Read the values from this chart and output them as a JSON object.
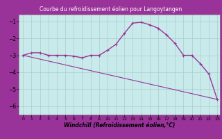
{
  "title": "Courbe du refroidissement éolien pour Langoytangen",
  "xlabel": "Windchill (Refroidissement éolien,°C)",
  "bg_color": "#c8eaea",
  "line_color": "#993399",
  "title_bg": "#993399",
  "title_color": "#ffffff",
  "xlim": [
    -0.5,
    23.3
  ],
  "ylim": [
    -6.5,
    -0.6
  ],
  "yticks": [
    -6,
    -5,
    -4,
    -3,
    -2,
    -1
  ],
  "xticks": [
    0,
    1,
    2,
    3,
    4,
    5,
    6,
    7,
    8,
    9,
    10,
    11,
    12,
    13,
    14,
    15,
    16,
    17,
    18,
    19,
    20,
    21,
    22,
    23
  ],
  "curve_x": [
    0,
    1,
    2,
    3,
    4,
    5,
    6,
    7,
    8,
    9,
    10,
    11,
    12,
    13,
    14,
    15,
    16,
    17,
    18,
    19,
    20,
    21,
    22,
    23
  ],
  "curve_y": [
    -3.0,
    -2.85,
    -2.85,
    -3.0,
    -3.0,
    -3.0,
    -3.05,
    -3.15,
    -3.0,
    -3.0,
    -2.7,
    -2.35,
    -1.7,
    -1.1,
    -1.05,
    -1.2,
    -1.4,
    -1.8,
    -2.3,
    -3.0,
    -3.0,
    -3.5,
    -4.1,
    -5.6
  ],
  "trend_x": [
    0,
    23
  ],
  "trend_y": [
    -3.0,
    -5.6
  ],
  "grid_color": "#aacccc",
  "marker": "+"
}
